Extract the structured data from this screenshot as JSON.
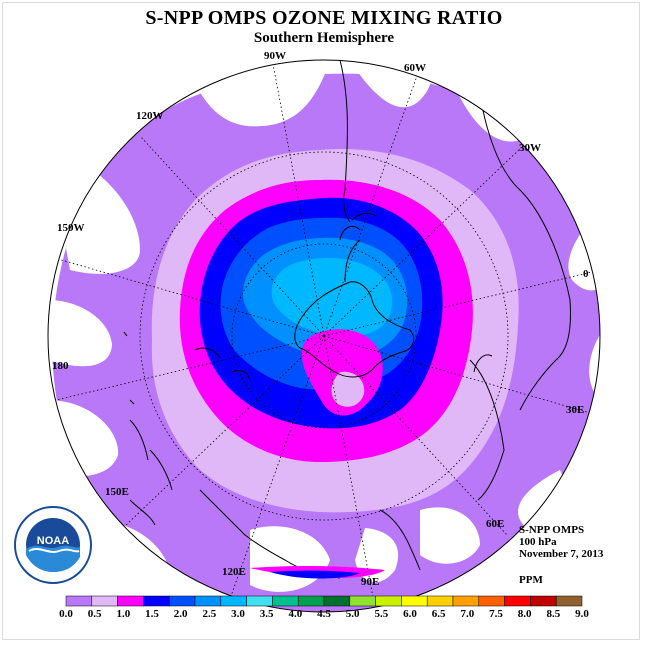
{
  "title": "S-NPP OMPS OZONE MIXING RATIO",
  "subtitle": "Southern Hemisphere",
  "longitude_labels": {
    "lon_0": "0",
    "lon_30e": "30E",
    "lon_60e": "60E",
    "lon_90e": "90E",
    "lon_120e": "120E",
    "lon_150e": "150E",
    "lon_180": "180",
    "lon_150w": "150W",
    "lon_120w": "120W",
    "lon_90w": "90W",
    "lon_60w": "60W",
    "lon_30w": "30W"
  },
  "info": {
    "instrument": "S-NPP OMPS",
    "level": "100 hPa",
    "date": "November 7, 2013",
    "units": "PPM"
  },
  "logo": {
    "text": "NOAA"
  },
  "colorbar": {
    "colors": [
      "#b878f8",
      "#e0b8f8",
      "#ff00ff",
      "#0000ff",
      "#0050ff",
      "#0090ff",
      "#00b8ff",
      "#40e0f0",
      "#00c090",
      "#00a050",
      "#007030",
      "#90e030",
      "#c8f000",
      "#ffff00",
      "#ffd000",
      "#ffa000",
      "#ff6000",
      "#ff0000",
      "#c00000",
      "#906030"
    ],
    "ticks": [
      "0.0",
      "0.5",
      "1.0",
      "1.5",
      "2.0",
      "2.5",
      "3.0",
      "3.5",
      "4.0",
      "4.5",
      "5.0",
      "5.5",
      "6.0",
      "6.5",
      "7.0",
      "7.5",
      "8.0",
      "8.5",
      "9.0"
    ]
  }
}
